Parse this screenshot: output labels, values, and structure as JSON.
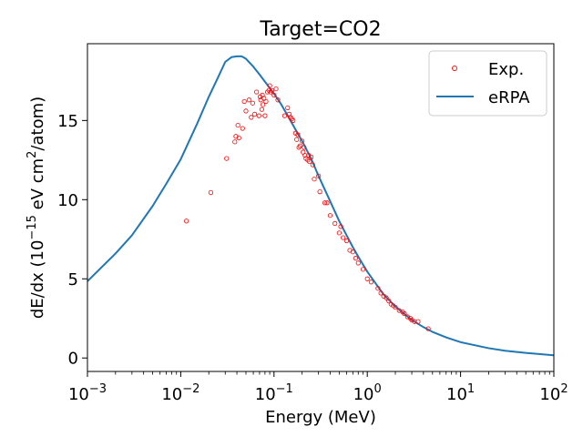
{
  "chart_data": {
    "type": "scatter",
    "title": "Target=CO2",
    "xlabel": "Energy (MeV)",
    "ylabel_parts": [
      "dE/dx (10",
      "−15",
      " eV cm",
      "2",
      "/atom)"
    ],
    "x_scale": "log",
    "xlim": [
      0.001,
      100
    ],
    "ylim": [
      -0.85,
      19.85
    ],
    "x_ticks": [
      {
        "value": 0.001,
        "base": "10",
        "exp": "−3"
      },
      {
        "value": 0.01,
        "base": "10",
        "exp": "−2"
      },
      {
        "value": 0.1,
        "base": "10",
        "exp": "−1"
      },
      {
        "value": 1,
        "base": "10",
        "exp": "0"
      },
      {
        "value": 10,
        "base": "10",
        "exp": "1"
      },
      {
        "value": 100,
        "base": "10",
        "exp": "2"
      }
    ],
    "y_ticks": [
      0,
      5,
      10,
      15
    ],
    "grid": false,
    "legend_position": "top-right",
    "series": [
      {
        "name": "Exp.",
        "kind": "scatter",
        "color": "#ff0000",
        "x": [
          0.0115,
          0.021,
          0.031,
          0.038,
          0.039,
          0.041,
          0.042,
          0.046,
          0.048,
          0.05,
          0.054,
          0.057,
          0.059,
          0.062,
          0.065,
          0.069,
          0.071,
          0.072,
          0.074,
          0.075,
          0.076,
          0.078,
          0.08,
          0.082,
          0.085,
          0.088,
          0.09,
          0.092,
          0.095,
          0.1,
          0.105,
          0.11,
          0.13,
          0.14,
          0.145,
          0.15,
          0.155,
          0.16,
          0.17,
          0.175,
          0.18,
          0.185,
          0.19,
          0.2,
          0.205,
          0.21,
          0.215,
          0.22,
          0.23,
          0.235,
          0.24,
          0.25,
          0.26,
          0.27,
          0.3,
          0.31,
          0.35,
          0.37,
          0.4,
          0.45,
          0.5,
          0.52,
          0.55,
          0.6,
          0.65,
          0.7,
          0.75,
          0.8,
          0.9,
          1.0,
          1.1,
          1.3,
          1.4,
          1.5,
          1.6,
          1.7,
          1.8,
          1.9,
          2.0,
          2.2,
          2.4,
          2.5,
          2.7,
          2.9,
          3.0,
          3.2,
          3.5,
          4.5
        ],
        "y": [
          8.65,
          10.45,
          12.6,
          13.65,
          14.0,
          14.7,
          13.9,
          14.5,
          16.2,
          15.6,
          16.3,
          15.2,
          16.1,
          15.4,
          16.8,
          15.3,
          16.5,
          16.3,
          15.7,
          16.6,
          16.0,
          16.4,
          15.3,
          16.2,
          16.8,
          16.9,
          17.2,
          16.8,
          16.9,
          16.6,
          17.0,
          16.3,
          15.3,
          15.8,
          15.4,
          15.2,
          15.1,
          15.0,
          14.2,
          13.8,
          14.1,
          13.3,
          13.4,
          13.7,
          13.0,
          13.3,
          12.8,
          12.6,
          12.5,
          12.8,
          12.4,
          12.7,
          12.2,
          11.3,
          11.5,
          10.5,
          9.8,
          9.8,
          9.0,
          8.5,
          7.9,
          8.3,
          7.6,
          7.4,
          6.8,
          6.7,
          6.3,
          6.0,
          5.6,
          5.0,
          4.8,
          4.4,
          4.1,
          3.9,
          3.8,
          3.6,
          3.4,
          3.3,
          3.2,
          3.0,
          2.9,
          2.8,
          2.6,
          2.5,
          2.4,
          2.3,
          2.3,
          1.85
        ]
      },
      {
        "name": "eRPA",
        "kind": "line",
        "color": "#1f77b4",
        "x": [
          0.001,
          0.002,
          0.003,
          0.005,
          0.007,
          0.01,
          0.015,
          0.02,
          0.025,
          0.03,
          0.035,
          0.04,
          0.045,
          0.05,
          0.06,
          0.07,
          0.08,
          0.1,
          0.12,
          0.15,
          0.2,
          0.25,
          0.3,
          0.4,
          0.5,
          0.6,
          0.7,
          0.8,
          1.0,
          1.5,
          2.0,
          3.0,
          4.0,
          5.0,
          7.0,
          10.0,
          20.0,
          30.0,
          50.0,
          100.0
        ],
        "y": [
          4.85,
          6.6,
          7.75,
          9.6,
          11.0,
          12.55,
          14.8,
          16.5,
          17.7,
          18.7,
          19.0,
          19.05,
          19.05,
          18.9,
          18.4,
          17.9,
          17.45,
          16.7,
          16.0,
          15.0,
          13.7,
          12.6,
          11.5,
          9.9,
          8.65,
          7.75,
          7.0,
          6.4,
          5.45,
          4.0,
          3.25,
          2.4,
          1.95,
          1.65,
          1.3,
          1.0,
          0.62,
          0.46,
          0.32,
          0.17
        ]
      }
    ]
  }
}
